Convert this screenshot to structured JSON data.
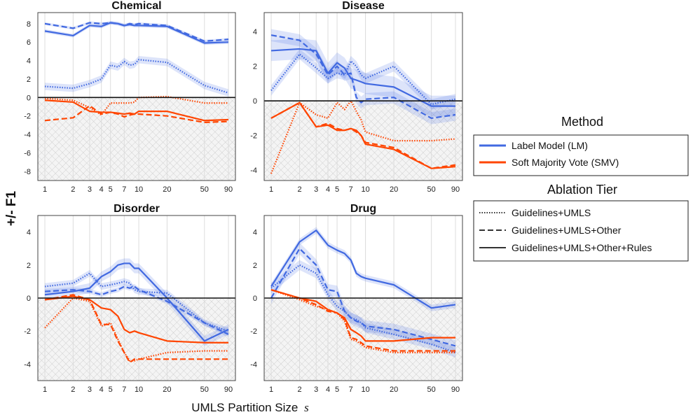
{
  "figure": {
    "ylabel": "+/- F1",
    "xlabel_prefix": "UMLS Partition Size",
    "xlabel_symbol": "s"
  },
  "legend": {
    "method_title": "Method",
    "method_entries": [
      {
        "label": "Label Model (LM)",
        "color": "#4169e1"
      },
      {
        "label": "Soft Majority Vote (SMV)",
        "color": "#ff4500"
      }
    ],
    "tier_title": "Ablation Tier",
    "tier_entries": [
      {
        "label": "Guidelines+UMLS",
        "style": "dotted"
      },
      {
        "label": "Guidelines+UMLS+Other",
        "style": "dashed"
      },
      {
        "label": "Guidelines+UMLS+Other+Rules",
        "style": "solid"
      }
    ]
  },
  "colors": {
    "lm": "#4169e1",
    "smv": "#ff4500",
    "band": "#4169e1"
  },
  "chart_data": [
    {
      "type": "line",
      "title": "Chemical",
      "x": [
        1,
        2,
        3,
        4,
        5,
        6,
        7,
        8,
        9,
        10,
        20,
        50,
        90
      ],
      "x_ticks": [
        1,
        2,
        3,
        4,
        5,
        7,
        10,
        20,
        50,
        90
      ],
      "x_scale": "log",
      "y_ticks": [
        -8,
        -6,
        -4,
        -2,
        0,
        2,
        4,
        6,
        8
      ],
      "ylim": [
        -9,
        9.2
      ],
      "series": [
        {
          "method": "LM",
          "tier": "dotted",
          "values": [
            1.2,
            1.0,
            1.5,
            2.0,
            3.5,
            3.3,
            3.9,
            3.5,
            3.6,
            4.1,
            3.8,
            1.3,
            0.5
          ],
          "band": 0.4
        },
        {
          "method": "LM",
          "tier": "dashed",
          "values": [
            8.0,
            7.5,
            8.1,
            8.0,
            8.1,
            8.0,
            7.8,
            8.0,
            7.9,
            8.0,
            7.8,
            6.1,
            6.3
          ],
          "band": 0.15
        },
        {
          "method": "LM",
          "tier": "solid",
          "values": [
            7.2,
            6.7,
            7.8,
            7.7,
            8.1,
            8.0,
            7.8,
            7.9,
            7.8,
            7.8,
            7.7,
            5.9,
            6.0
          ],
          "band": 0.2
        },
        {
          "method": "SMV",
          "tier": "dotted",
          "values": [
            -0.1,
            -0.3,
            -1.1,
            -1.9,
            -0.6,
            -0.6,
            -0.6,
            -0.6,
            -0.5,
            0.0,
            0.1,
            -0.6,
            -0.6
          ],
          "band": 0
        },
        {
          "method": "SMV",
          "tier": "dashed",
          "values": [
            -2.5,
            -2.2,
            -0.9,
            -1.8,
            -1.6,
            -1.8,
            -2.1,
            -1.9,
            -1.8,
            -1.8,
            -2.0,
            -2.7,
            -2.6
          ],
          "band": 0
        },
        {
          "method": "SMV",
          "tier": "solid",
          "values": [
            -0.3,
            -0.5,
            -1.5,
            -1.6,
            -1.6,
            -1.7,
            -1.8,
            -1.7,
            -1.8,
            -1.5,
            -1.5,
            -2.5,
            -2.4
          ],
          "band": 0
        }
      ]
    },
    {
      "type": "line",
      "title": "Disease",
      "x": [
        1,
        2,
        3,
        4,
        5,
        6,
        7,
        8,
        9,
        10,
        20,
        50,
        90
      ],
      "x_ticks": [
        1,
        2,
        3,
        4,
        5,
        7,
        10,
        20,
        50,
        90
      ],
      "x_scale": "log",
      "y_ticks": [
        -4,
        -2,
        0,
        2,
        4
      ],
      "ylim": [
        -4.6,
        5.1
      ],
      "series": [
        {
          "method": "LM",
          "tier": "dotted",
          "values": [
            0.6,
            2.7,
            1.9,
            1.3,
            1.6,
            1.5,
            2.3,
            2.0,
            1.5,
            1.3,
            2.0,
            -0.2,
            0.1
          ],
          "band": 0.3
        },
        {
          "method": "LM",
          "tier": "dashed",
          "values": [
            3.8,
            3.5,
            2.7,
            1.5,
            2.0,
            1.5,
            1.6,
            0.2,
            -0.1,
            0.1,
            0.2,
            -1.0,
            -0.8
          ],
          "band": 0.35
        },
        {
          "method": "LM",
          "tier": "solid",
          "values": [
            2.9,
            3.0,
            2.9,
            1.6,
            2.2,
            1.9,
            1.3,
            1.2,
            1.1,
            1.0,
            0.8,
            -0.3,
            -0.3
          ],
          "band": 0.6
        },
        {
          "method": "SMV",
          "tier": "dotted",
          "values": [
            -4.2,
            -0.1,
            -0.8,
            -1.0,
            -0.1,
            -0.5,
            0.0,
            -0.6,
            -1.1,
            -1.8,
            -2.3,
            -2.3,
            -2.2
          ],
          "band": 0
        },
        {
          "method": "SMV",
          "tier": "dashed",
          "values": [
            -1.0,
            -0.1,
            -1.5,
            -1.3,
            -1.6,
            -1.7,
            -1.6,
            -1.8,
            -2.0,
            -2.4,
            -2.7,
            -3.9,
            -3.7
          ],
          "band": 0
        },
        {
          "method": "SMV",
          "tier": "solid",
          "values": [
            -1.0,
            -0.1,
            -1.5,
            -1.4,
            -1.7,
            -1.7,
            -1.6,
            -1.7,
            -2.0,
            -2.5,
            -2.8,
            -3.9,
            -3.8
          ],
          "band": 0
        }
      ]
    },
    {
      "type": "line",
      "title": "Disorder",
      "x": [
        1,
        2,
        3,
        4,
        5,
        6,
        7,
        8,
        9,
        10,
        20,
        50,
        90
      ],
      "x_ticks": [
        1,
        2,
        3,
        4,
        5,
        7,
        10,
        20,
        50,
        90
      ],
      "x_scale": "log",
      "y_ticks": [
        -4,
        -2,
        0,
        2,
        4
      ],
      "ylim": [
        -5.0,
        5.0
      ],
      "series": [
        {
          "method": "LM",
          "tier": "dotted",
          "values": [
            0.7,
            0.9,
            1.5,
            0.7,
            0.8,
            0.9,
            1.0,
            0.9,
            0.5,
            0.4,
            0.3,
            -1.5,
            -2.0
          ],
          "band": 0.2
        },
        {
          "method": "LM",
          "tier": "dashed",
          "values": [
            0.4,
            0.5,
            0.4,
            0.2,
            0.4,
            0.5,
            0.7,
            0.6,
            0.7,
            0.5,
            -0.2,
            -1.5,
            -2.2
          ],
          "band": 0.15
        },
        {
          "method": "LM",
          "tier": "solid",
          "values": [
            0.2,
            0.4,
            0.6,
            1.3,
            1.6,
            2.0,
            2.1,
            2.1,
            1.8,
            1.8,
            0.0,
            -2.6,
            -1.9
          ],
          "band": 0.3
        },
        {
          "method": "SMV",
          "tier": "dotted",
          "values": [
            -1.8,
            0.0,
            -0.2,
            -1.7,
            -1.5,
            -2.5,
            -3.3,
            -3.8,
            -3.8,
            -3.7,
            -3.3,
            -3.2,
            -3.2
          ],
          "band": 0
        },
        {
          "method": "SMV",
          "tier": "dashed",
          "values": [
            -0.1,
            0.2,
            -0.1,
            -1.6,
            -1.6,
            -2.6,
            -3.3,
            -3.9,
            -3.7,
            -3.7,
            -3.7,
            -3.7,
            -3.7
          ],
          "band": 0
        },
        {
          "method": "SMV",
          "tier": "solid",
          "values": [
            -0.1,
            0.1,
            -0.1,
            -0.6,
            -0.7,
            -1.1,
            -1.9,
            -2.1,
            -2.0,
            -2.1,
            -2.6,
            -2.7,
            -2.7
          ],
          "band": 0
        }
      ]
    },
    {
      "type": "line",
      "title": "Drug",
      "x": [
        1,
        2,
        3,
        4,
        5,
        6,
        7,
        8,
        9,
        10,
        20,
        50,
        90
      ],
      "x_ticks": [
        1,
        2,
        3,
        4,
        5,
        7,
        10,
        20,
        50,
        90
      ],
      "x_scale": "log",
      "y_ticks": [
        -4,
        -2,
        0,
        2,
        4
      ],
      "ylim": [
        -5.0,
        5.0
      ],
      "series": [
        {
          "method": "LM",
          "tier": "dotted",
          "values": [
            0.6,
            2.0,
            1.5,
            0.2,
            -0.5,
            -0.8,
            -1.2,
            -1.3,
            -1.5,
            -1.8,
            -2.2,
            -2.8,
            -3.3
          ],
          "band": 0.3
        },
        {
          "method": "LM",
          "tier": "dashed",
          "values": [
            0.0,
            3.0,
            2.0,
            0.5,
            0.4,
            -0.8,
            -1.2,
            -1.4,
            -1.5,
            -1.7,
            -1.9,
            -2.5,
            -2.9
          ],
          "band": 0.35
        },
        {
          "method": "LM",
          "tier": "solid",
          "values": [
            0.7,
            3.4,
            4.1,
            3.2,
            2.9,
            2.7,
            2.3,
            1.5,
            1.3,
            1.2,
            0.8,
            -0.6,
            -0.4
          ],
          "band": 0.2
        },
        {
          "method": "SMV",
          "tier": "dotted",
          "values": [
            0.5,
            -0.1,
            -0.5,
            -0.7,
            -0.9,
            -1.4,
            -2.5,
            -2.6,
            -2.8,
            -3.0,
            -3.3,
            -3.3,
            -3.3
          ],
          "band": 0
        },
        {
          "method": "SMV",
          "tier": "dashed",
          "values": [
            0.5,
            0.0,
            -0.4,
            -0.8,
            -0.9,
            -1.3,
            -2.4,
            -2.5,
            -2.7,
            -2.9,
            -3.2,
            -3.2,
            -3.2
          ],
          "band": 0
        },
        {
          "method": "SMV",
          "tier": "solid",
          "values": [
            0.5,
            0.0,
            -0.2,
            -0.7,
            -0.9,
            -1.2,
            -1.9,
            -2.1,
            -2.3,
            -2.6,
            -2.6,
            -2.4,
            -2.4
          ],
          "band": 0
        }
      ]
    }
  ]
}
